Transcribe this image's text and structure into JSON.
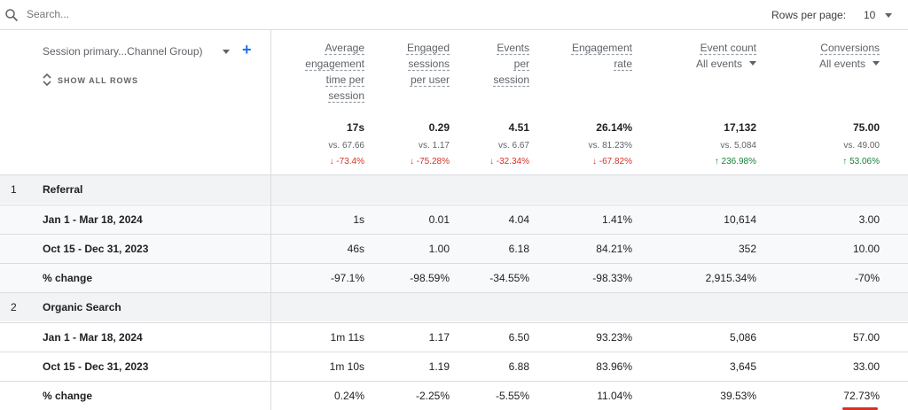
{
  "search": {
    "placeholder": "Search..."
  },
  "pagination": {
    "rows_per_page_label": "Rows per page:",
    "rows_per_page_value": "10"
  },
  "dimension": {
    "label": "Session primary...Channel Group)",
    "show_rows_label": "SHOW ALL ROWS"
  },
  "columns": [
    {
      "lines": [
        "Average",
        "engagement",
        "time per",
        "session"
      ],
      "total": "17s",
      "vs": "vs. 67.66",
      "change": "↓ -73.4%",
      "trend": "down"
    },
    {
      "lines": [
        "Engaged",
        "sessions",
        "per user"
      ],
      "total": "0.29",
      "vs": "vs. 1.17",
      "change": "↓ -75.28%",
      "trend": "down"
    },
    {
      "lines": [
        "Events",
        "per",
        "session"
      ],
      "total": "4.51",
      "vs": "vs. 6.67",
      "change": "↓ -32.34%",
      "trend": "down"
    },
    {
      "lines": [
        "Engagement",
        "rate"
      ],
      "total": "26.14%",
      "vs": "vs. 81.23%",
      "change": "↓ -67.82%",
      "trend": "down"
    },
    {
      "lines": [
        "Event count"
      ],
      "selector": "All events",
      "total": "17,132",
      "vs": "vs. 5,084",
      "change": "↑ 236.98%",
      "trend": "up"
    },
    {
      "lines": [
        "Conversions"
      ],
      "selector": "All events",
      "total": "75.00",
      "vs": "vs. 49.00",
      "change": "↑ 53.06%",
      "trend": "up"
    }
  ],
  "rows": [
    {
      "type": "group",
      "num": "1",
      "label": "Referral",
      "cells": []
    },
    {
      "type": "sub",
      "label": "Jan 1 - Mar 18, 2024",
      "cells": [
        "1s",
        "0.01",
        "4.04",
        "1.41%",
        "10,614",
        "3.00"
      ]
    },
    {
      "type": "sub",
      "label": "Oct 15 - Dec 31, 2023",
      "cells": [
        "46s",
        "1.00",
        "6.18",
        "84.21%",
        "352",
        "10.00"
      ]
    },
    {
      "type": "sub",
      "label": "% change",
      "cells": [
        "-97.1%",
        "-98.59%",
        "-34.55%",
        "-98.33%",
        "2,915.34%",
        "-70%"
      ]
    },
    {
      "type": "group",
      "num": "2",
      "label": "Organic Search",
      "cells": []
    },
    {
      "type": "plain",
      "label": "Jan 1 - Mar 18, 2024",
      "cells": [
        "1m 11s",
        "1.17",
        "6.50",
        "93.23%",
        "5,086",
        "57.00"
      ]
    },
    {
      "type": "plain",
      "label": "Oct 15 - Dec 31, 2023",
      "cells": [
        "1m 10s",
        "1.19",
        "6.88",
        "83.96%",
        "3,645",
        "33.00"
      ]
    },
    {
      "type": "plain",
      "label": "% change",
      "cells": [
        "0.24%",
        "-2.25%",
        "-5.55%",
        "11.04%",
        "39.53%",
        "72.73%"
      ]
    }
  ],
  "colors": {
    "accent": "#1a73e8",
    "negative": "#d93025",
    "positive": "#188038",
    "highlight_underline": "#d93025"
  }
}
